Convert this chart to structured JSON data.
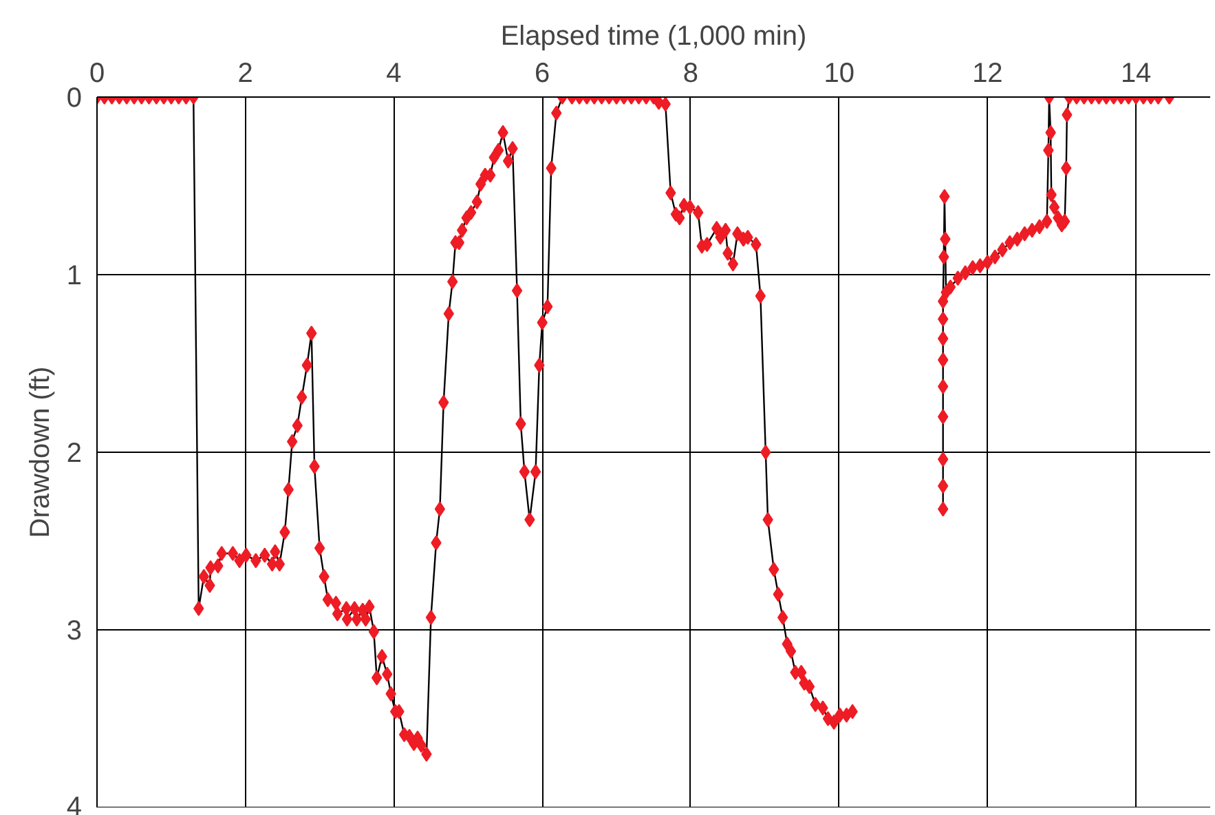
{
  "chart_data": {
    "type": "line",
    "xlabel": "Elapsed time (1,000 min)",
    "ylabel": "Drawdown (ft)",
    "xlim": [
      0,
      15
    ],
    "ylim": [
      4,
      0
    ],
    "xticks": [
      0,
      2,
      4,
      6,
      8,
      10,
      12,
      14
    ],
    "yticks": [
      0,
      1,
      2,
      3,
      4
    ],
    "grid": true,
    "marker": "diamond",
    "line_style": "solid",
    "series": [
      {
        "color": "#ee1c25",
        "x": [
          0,
          0.1,
          0.2,
          0.3,
          0.4,
          0.5,
          0.6,
          0.7,
          0.8,
          0.9,
          1.0,
          1.1,
          1.2,
          1.3,
          1.37,
          1.44,
          1.52,
          1.53,
          1.63,
          1.68,
          1.83,
          1.92,
          2.01,
          2.14,
          2.26,
          2.36,
          2.4,
          2.46,
          2.53,
          2.58,
          2.63,
          2.7,
          2.76,
          2.83,
          2.89,
          2.93,
          3.0,
          3.06,
          3.11,
          3.22,
          3.24,
          3.36,
          3.37,
          3.47,
          3.5,
          3.58,
          3.62,
          3.67,
          3.73,
          3.77,
          3.84,
          3.91,
          3.96,
          4.02,
          4.07,
          4.14,
          4.21,
          4.27,
          4.32,
          4.37,
          4.44,
          4.5,
          4.57,
          4.62,
          4.67,
          4.74,
          4.79,
          4.83,
          4.88,
          4.92,
          4.98,
          5.04,
          5.12,
          5.17,
          5.23,
          5.3,
          5.35,
          5.41,
          5.47,
          5.54,
          5.6,
          5.66,
          5.71,
          5.76,
          5.83,
          5.91,
          5.96,
          6.0,
          6.07,
          6.12,
          6.19,
          6.27,
          6.4,
          6.5,
          6.6,
          6.7,
          6.8,
          6.9,
          7.0,
          7.1,
          7.2,
          7.3,
          7.4,
          7.5,
          7.57,
          7.66,
          7.73,
          7.8,
          7.85,
          7.91,
          7.99,
          8.1,
          8.15,
          8.22,
          8.35,
          8.4,
          8.47,
          8.5,
          8.57,
          8.63,
          8.71,
          8.77,
          8.88,
          8.94,
          9.01,
          9.04,
          9.12,
          9.18,
          9.24,
          9.3,
          9.35,
          9.41,
          9.49,
          9.53,
          9.6,
          9.68,
          9.78,
          9.85,
          9.93,
          10.01,
          10.1,
          10.18,
          10.8,
          11.4,
          11.4,
          11.4,
          11.4,
          11.4,
          11.4,
          11.4,
          11.4,
          11.4,
          11.41,
          11.42,
          11.43,
          11.44,
          11.5,
          11.6,
          11.7,
          11.8,
          11.9,
          12.0,
          12.1,
          12.2,
          12.3,
          12.4,
          12.5,
          12.6,
          12.7,
          12.8,
          12.82,
          12.83,
          12.85,
          12.86,
          12.9,
          12.95,
          13.0,
          13.04,
          13.06,
          13.07,
          13.1,
          13.2,
          13.3,
          13.4,
          13.5,
          13.6,
          13.7,
          13.8,
          13.9,
          14.0,
          14.1,
          14.2,
          14.3,
          14.45
        ],
        "values": [
          0,
          0,
          0,
          0,
          0,
          0,
          0,
          0,
          0,
          0,
          0,
          0,
          0,
          0,
          2.88,
          2.7,
          2.75,
          2.65,
          2.64,
          2.57,
          2.57,
          2.61,
          2.58,
          2.61,
          2.58,
          2.63,
          2.56,
          2.63,
          2.45,
          2.21,
          1.94,
          1.85,
          1.69,
          1.51,
          1.33,
          2.08,
          2.54,
          2.7,
          2.83,
          2.85,
          2.91,
          2.88,
          2.94,
          2.88,
          2.94,
          2.89,
          2.94,
          2.87,
          3.01,
          3.27,
          3.15,
          3.25,
          3.36,
          3.46,
          3.46,
          3.59,
          3.6,
          3.64,
          3.61,
          3.65,
          3.7,
          2.93,
          2.51,
          2.32,
          1.72,
          1.22,
          1.04,
          0.82,
          0.82,
          0.75,
          0.68,
          0.65,
          0.59,
          0.49,
          0.44,
          0.44,
          0.34,
          0.3,
          0.2,
          0.36,
          0.29,
          1.09,
          1.84,
          2.11,
          2.38,
          2.11,
          1.51,
          1.27,
          1.18,
          0.4,
          0.09,
          0,
          0,
          0,
          0,
          0,
          0,
          0,
          0,
          0,
          0,
          0,
          0,
          0,
          0.03,
          0.04,
          0.54,
          0.66,
          0.68,
          0.61,
          0.62,
          0.65,
          0.84,
          0.83,
          0.74,
          0.79,
          0.75,
          0.88,
          0.94,
          0.77,
          0.8,
          0.79,
          0.83,
          1.12,
          2.0,
          2.38,
          2.66,
          2.8,
          2.93,
          3.08,
          3.12,
          3.24,
          3.24,
          3.3,
          3.32,
          3.42,
          3.44,
          3.5,
          3.52,
          3.48,
          3.48,
          3.46,
          null,
          2.32,
          2.19,
          2.04,
          1.8,
          1.63,
          1.48,
          1.36,
          1.25,
          1.15,
          0.9,
          0.56,
          0.8,
          1.1,
          1.07,
          1.02,
          0.99,
          0.96,
          0.95,
          0.93,
          0.9,
          0.86,
          0.82,
          0.8,
          0.77,
          0.75,
          0.73,
          0.7,
          0.3,
          0,
          0.2,
          0.55,
          0.62,
          0.68,
          0.72,
          0.7,
          0.4,
          0.1,
          0,
          0,
          0,
          0,
          0,
          0,
          0,
          0,
          0,
          0,
          0,
          0,
          0,
          0
        ]
      }
    ]
  }
}
